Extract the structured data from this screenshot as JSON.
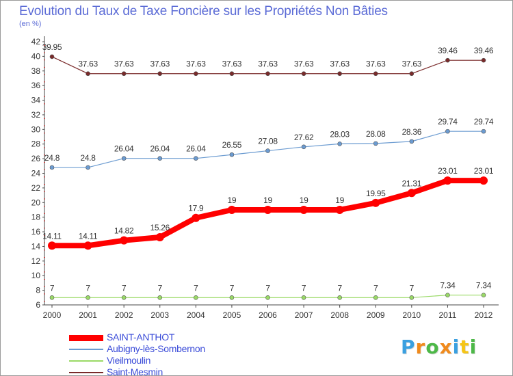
{
  "chart_data": {
    "type": "line",
    "title": "Evolution du Taux de Taxe Foncière sur les Propriétés Non Bâties",
    "ylabel": "(en %)",
    "xlabel": "",
    "ylim": [
      6,
      42
    ],
    "yticks": [
      6,
      8,
      10,
      12,
      14,
      16,
      18,
      20,
      22,
      24,
      26,
      28,
      30,
      32,
      34,
      36,
      38,
      40,
      42
    ],
    "categories": [
      "2000",
      "2001",
      "2002",
      "2003",
      "2004",
      "2005",
      "2006",
      "2007",
      "2008",
      "2009",
      "2010",
      "2011",
      "2012"
    ],
    "series": [
      {
        "name": "SAINT-ANTHOT",
        "color": "#ff0000",
        "values": [
          14.11,
          14.11,
          14.82,
          15.26,
          17.9,
          19,
          19,
          19,
          19,
          19.95,
          21.31,
          23.01,
          23.01
        ],
        "labels": [
          "14.11",
          "14.11",
          "14.82",
          "15.26",
          "17.9",
          "19",
          "19",
          "19",
          "19",
          "19.95",
          "21.31",
          "23.01",
          "23.01"
        ]
      },
      {
        "name": "Aubigny-lès-Sombernon",
        "color": "#6b9bd1",
        "values": [
          24.8,
          24.8,
          26.04,
          26.04,
          26.04,
          26.55,
          27.08,
          27.62,
          28.03,
          28.08,
          28.36,
          29.74,
          29.74
        ],
        "labels": [
          "24.8",
          "24.8",
          "26.04",
          "26.04",
          "26.04",
          "26.55",
          "27.08",
          "27.62",
          "28.03",
          "28.08",
          "28.36",
          "29.74",
          "29.74"
        ]
      },
      {
        "name": "Vieilmoulin",
        "color": "#99d966",
        "values": [
          7,
          7,
          7,
          7,
          7,
          7,
          7,
          7,
          7,
          7,
          7,
          7.34,
          7.34
        ],
        "labels": [
          "7",
          "7",
          "7",
          "7",
          "7",
          "7",
          "7",
          "7",
          "7",
          "7",
          "7",
          "7.34",
          "7.34"
        ]
      },
      {
        "name": "Saint-Mesmin",
        "color": "#7a2a2a",
        "values": [
          39.95,
          37.63,
          37.63,
          37.63,
          37.63,
          37.63,
          37.63,
          37.63,
          37.63,
          37.63,
          37.63,
          39.46,
          39.46
        ],
        "labels": [
          "39.95",
          "37.63",
          "37.63",
          "37.63",
          "37.63",
          "37.63",
          "37.63",
          "37.63",
          "37.63",
          "37.63",
          "37.63",
          "39.46",
          "39.46"
        ]
      }
    ],
    "legend_position": "bottom-left"
  },
  "logo": {
    "letters": [
      "P",
      "r",
      "o",
      "x",
      "i",
      "t",
      "i"
    ],
    "colors": [
      "#3aa0e0",
      "#f08a1c",
      "#4db848",
      "#f08a1c",
      "#3aa0e0",
      "#f5c518",
      "#4db848"
    ]
  }
}
